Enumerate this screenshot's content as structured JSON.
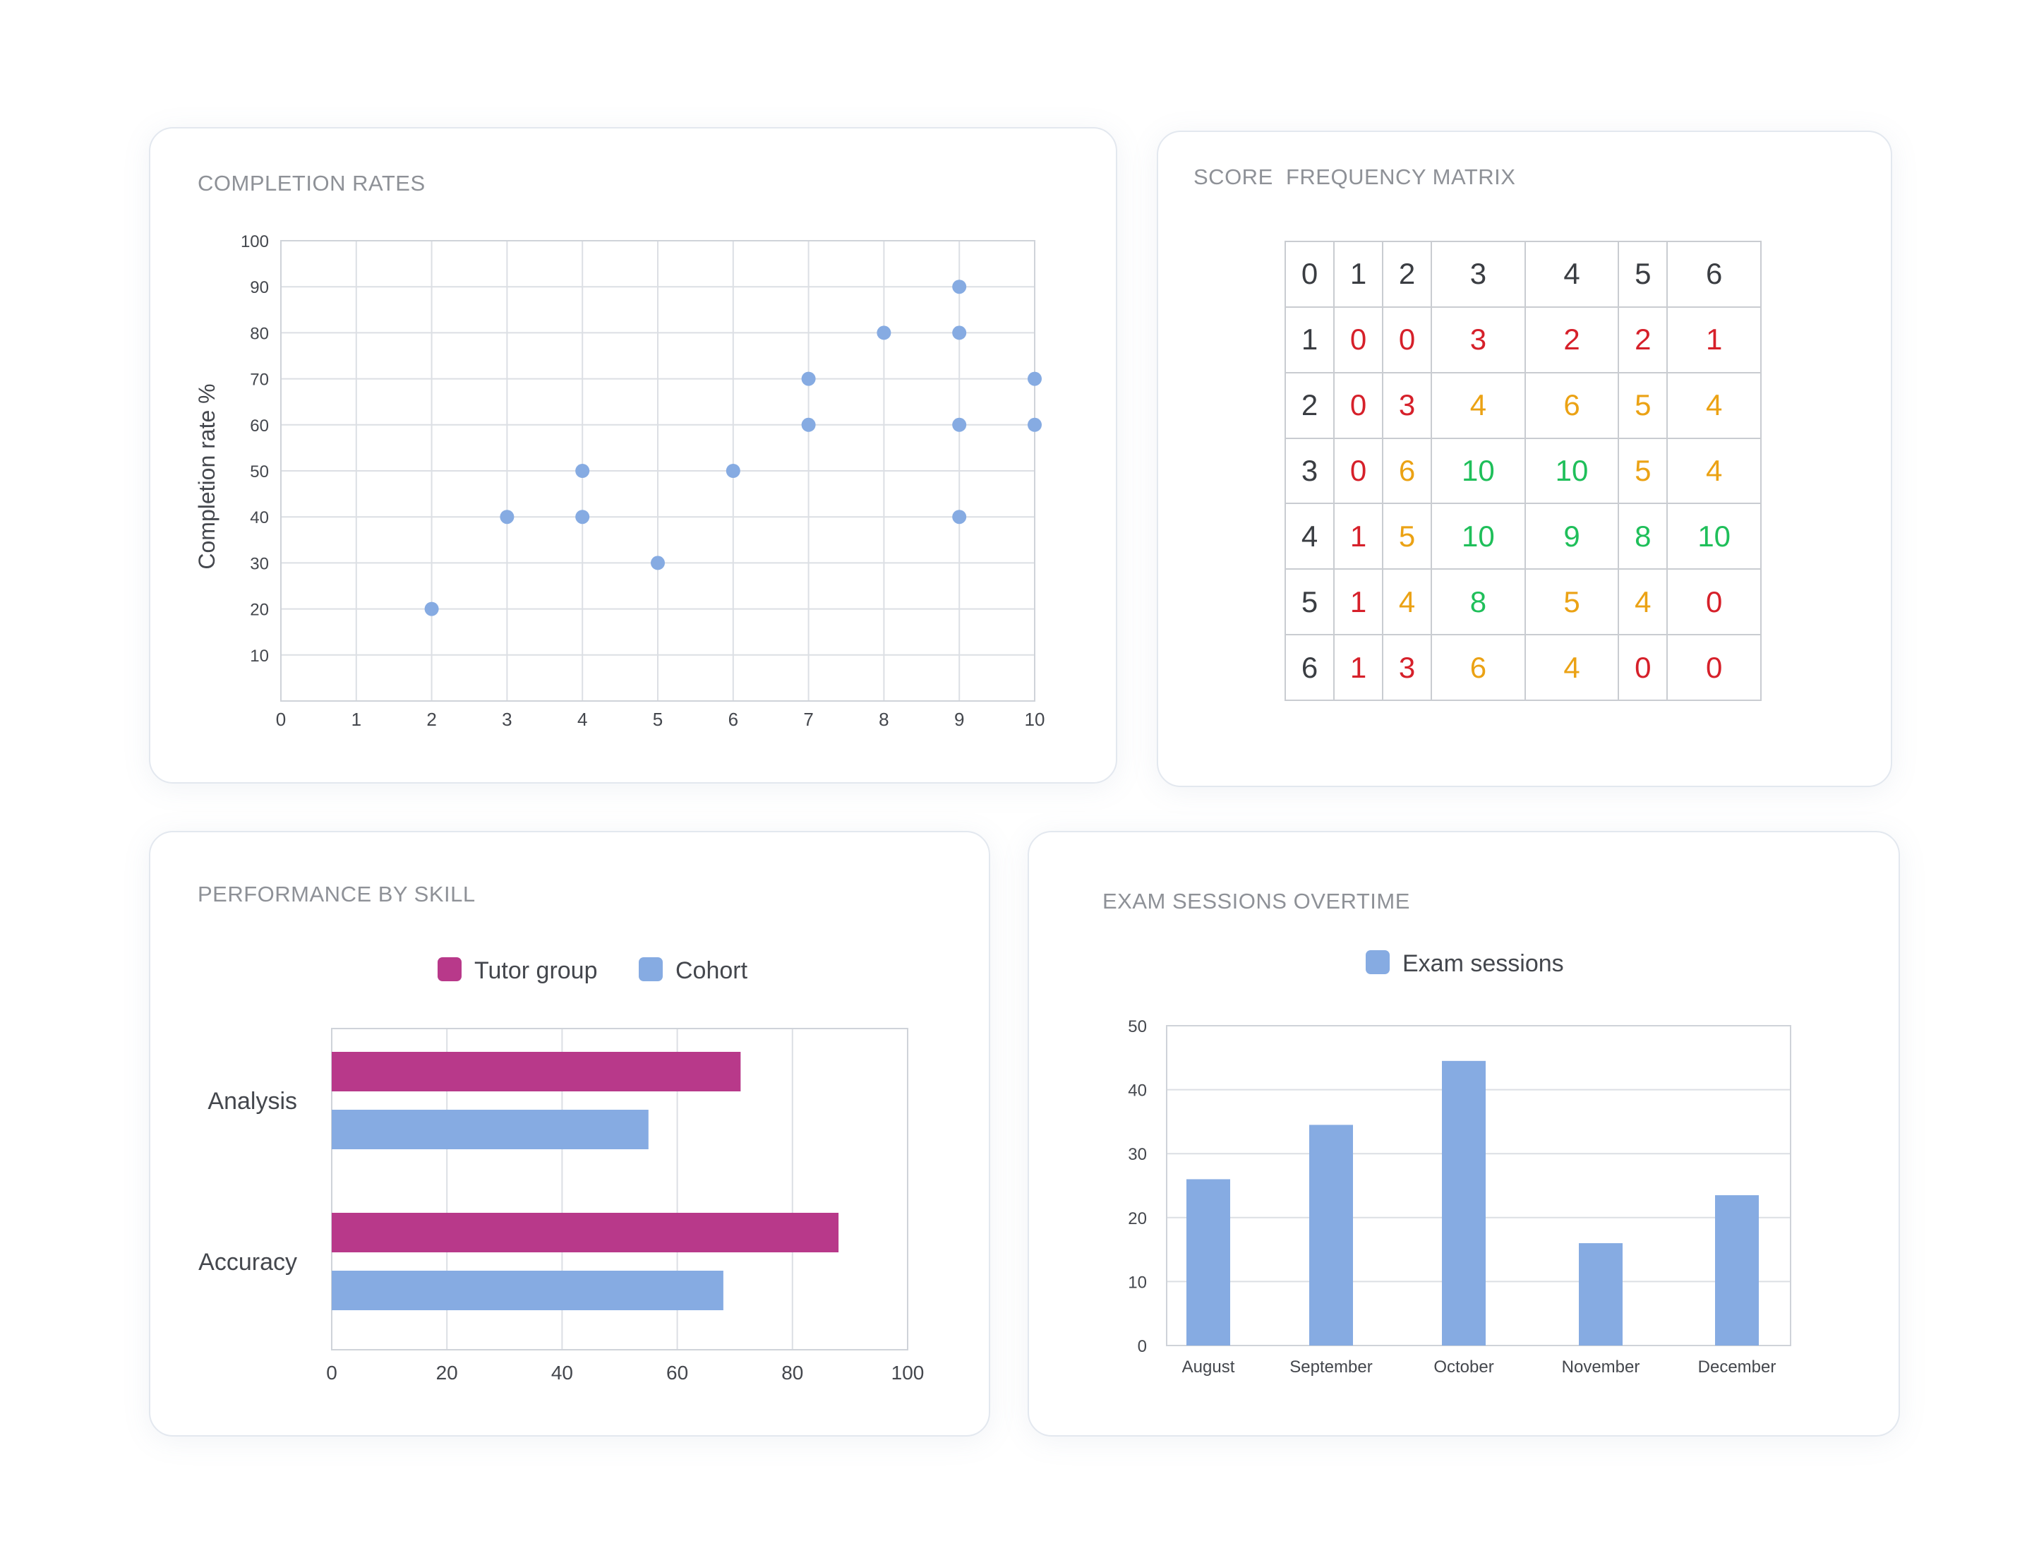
{
  "colors": {
    "blue": "#86abe2",
    "magenta": "#b8398a",
    "red": "#d6202a",
    "orange": "#eba214",
    "green": "#1fbf5a",
    "header": "#3a3d42"
  },
  "scatter": {
    "title": "COMPLETION RATES",
    "chart_data": {
      "type": "scatter",
      "ylabel": "Completion rate %",
      "xlabel": "",
      "xlim": [
        0,
        10
      ],
      "ylim": [
        0,
        100
      ],
      "x_ticks": [
        "0",
        "1",
        "2",
        "3",
        "4",
        "5",
        "6",
        "7",
        "8",
        "9",
        "10"
      ],
      "y_ticks": [
        "10",
        "20",
        "30",
        "40",
        "50",
        "60",
        "70",
        "80",
        "90",
        "100"
      ],
      "points": [
        {
          "x": 2,
          "y": 20
        },
        {
          "x": 3,
          "y": 40
        },
        {
          "x": 4,
          "y": 50
        },
        {
          "x": 4,
          "y": 40
        },
        {
          "x": 5,
          "y": 30
        },
        {
          "x": 6,
          "y": 50
        },
        {
          "x": 7,
          "y": 70
        },
        {
          "x": 7,
          "y": 60
        },
        {
          "x": 8,
          "y": 80
        },
        {
          "x": 9,
          "y": 90
        },
        {
          "x": 9,
          "y": 80
        },
        {
          "x": 9,
          "y": 60
        },
        {
          "x": 9,
          "y": 40
        },
        {
          "x": 10,
          "y": 70
        },
        {
          "x": 10,
          "y": 60
        }
      ]
    }
  },
  "matrix": {
    "title": "SCORE  FREQUENCY MATRIX",
    "chart_data": {
      "type": "table",
      "column_headers": [
        "0",
        "1",
        "2",
        "3",
        "4",
        "5",
        "6"
      ],
      "rows": [
        {
          "label": "1",
          "values": [
            0,
            0,
            3,
            2,
            2,
            1
          ]
        },
        {
          "label": "2",
          "values": [
            0,
            3,
            4,
            6,
            5,
            4
          ]
        },
        {
          "label": "3",
          "values": [
            0,
            6,
            10,
            10,
            5,
            4
          ]
        },
        {
          "label": "4",
          "values": [
            1,
            5,
            10,
            9,
            8,
            10
          ]
        },
        {
          "label": "5",
          "values": [
            1,
            4,
            8,
            5,
            4,
            0
          ]
        },
        {
          "label": "6",
          "values": [
            1,
            3,
            6,
            4,
            0,
            0
          ]
        }
      ]
    }
  },
  "hbar": {
    "title": "PERFORMANCE BY SKILL",
    "chart_data": {
      "type": "bar",
      "orientation": "horizontal",
      "categories": [
        "Analysis",
        "Accuracy"
      ],
      "series": [
        {
          "name": "Tutor group",
          "values": [
            71,
            88
          ],
          "color": "#b8398a"
        },
        {
          "name": "Cohort",
          "values": [
            55,
            68
          ],
          "color": "#86abe2"
        }
      ],
      "xlim": [
        0,
        100
      ],
      "x_ticks": [
        "0",
        "20",
        "40",
        "60",
        "80",
        "100"
      ],
      "legend": "top-center"
    }
  },
  "vbar": {
    "title": "EXAM SESSIONS OVERTIME",
    "chart_data": {
      "type": "bar",
      "categories": [
        "August",
        "September",
        "October",
        "November",
        "December"
      ],
      "series": [
        {
          "name": "Exam sessions",
          "values": [
            26,
            34.5,
            44.5,
            16,
            23.5
          ],
          "color": "#86abe2"
        }
      ],
      "ylim": [
        0,
        50
      ],
      "y_ticks": [
        "0",
        "10",
        "20",
        "30",
        "40",
        "50"
      ],
      "legend": "top-center"
    }
  }
}
